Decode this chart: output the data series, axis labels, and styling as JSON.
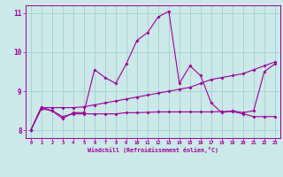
{
  "xlabel": "Windchill (Refroidissement éolien,°C)",
  "background_color": "#cce8e8",
  "grid_color": "#99cccc",
  "line_color": "#990099",
  "xlim": [
    -0.5,
    23.5
  ],
  "ylim": [
    7.8,
    11.2
  ],
  "xticks": [
    0,
    1,
    2,
    3,
    4,
    5,
    6,
    7,
    8,
    9,
    10,
    11,
    12,
    13,
    14,
    15,
    16,
    17,
    18,
    19,
    20,
    21,
    22,
    23
  ],
  "yticks": [
    8,
    9,
    10,
    11
  ],
  "hours": [
    0,
    1,
    2,
    3,
    4,
    5,
    6,
    7,
    8,
    9,
    10,
    11,
    12,
    13,
    14,
    15,
    16,
    17,
    18,
    19,
    20,
    21,
    22,
    23
  ],
  "line1": [
    8.0,
    8.6,
    8.5,
    8.3,
    8.45,
    8.45,
    9.55,
    9.35,
    9.2,
    9.7,
    10.3,
    10.5,
    10.9,
    11.05,
    9.2,
    9.65,
    9.4,
    8.7,
    8.45,
    8.5,
    8.45,
    8.5,
    9.5,
    9.7
  ],
  "line2": [
    8.0,
    8.55,
    8.5,
    8.35,
    8.42,
    8.42,
    8.42,
    8.42,
    8.42,
    8.45,
    8.45,
    8.46,
    8.47,
    8.47,
    8.47,
    8.47,
    8.47,
    8.47,
    8.48,
    8.48,
    8.42,
    8.35,
    8.35,
    8.35
  ],
  "line3": [
    8.0,
    8.58,
    8.58,
    8.58,
    8.58,
    8.6,
    8.65,
    8.7,
    8.75,
    8.8,
    8.85,
    8.9,
    8.95,
    9.0,
    9.05,
    9.1,
    9.2,
    9.3,
    9.35,
    9.4,
    9.45,
    9.55,
    9.65,
    9.75
  ]
}
